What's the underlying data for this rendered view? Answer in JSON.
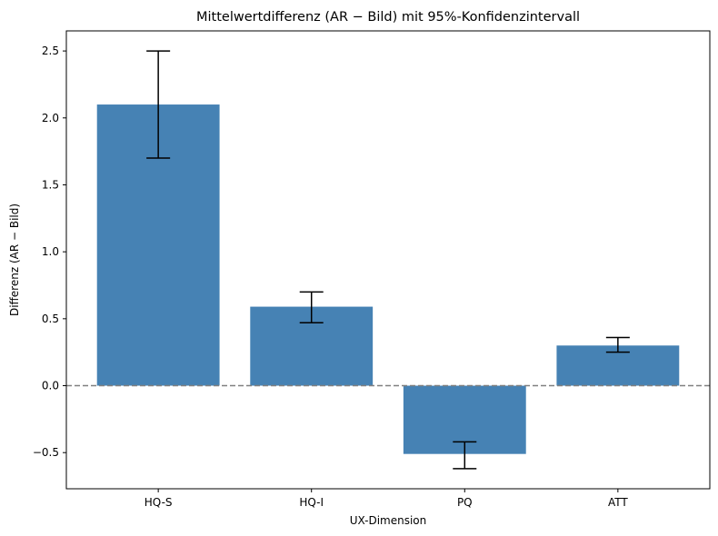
{
  "chart_data": {
    "type": "bar",
    "title": "Mittelwertdifferenz (AR − Bild) mit 95%-Konfidenzintervall",
    "xlabel": "UX-Dimension",
    "ylabel": "Differenz (AR − Bild)",
    "categories": [
      "HQ-S",
      "HQ-I",
      "PQ",
      "ATT"
    ],
    "values": [
      2.1,
      0.59,
      -0.51,
      0.3
    ],
    "ci_lower": [
      1.7,
      0.47,
      -0.62,
      0.25
    ],
    "ci_upper": [
      2.5,
      0.7,
      -0.42,
      0.36
    ],
    "ylim": [
      -0.77,
      2.65
    ],
    "yticks": [
      -0.5,
      0.0,
      0.5,
      1.0,
      1.5,
      2.0,
      2.5
    ],
    "ytick_labels": [
      "−0.5",
      "0.0",
      "0.5",
      "1.0",
      "1.5",
      "2.0",
      "2.5"
    ],
    "reference_line": 0,
    "bar_color": "#4682b4",
    "reference_line_color": "#808080",
    "grid": false,
    "legend": "none"
  }
}
